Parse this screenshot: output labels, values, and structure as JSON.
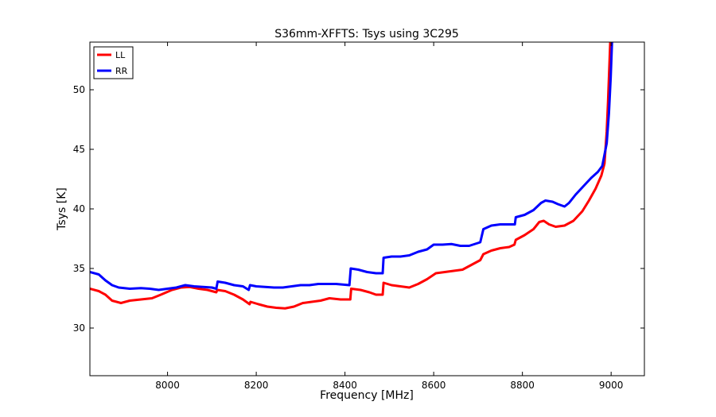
{
  "chart_data": {
    "type": "line",
    "title": "S36mm-XFFTS: Tsys using 3C295",
    "xlabel": "Frequency [MHz]",
    "ylabel": "Tsys [K]",
    "xlim": [
      7825,
      9075
    ],
    "ylim": [
      26,
      54
    ],
    "xticks": [
      8000,
      8200,
      8400,
      8600,
      8800,
      9000
    ],
    "yticks": [
      30,
      35,
      40,
      45,
      50
    ],
    "grid": false,
    "legend": {
      "placement": "top-left",
      "entries": [
        "LL",
        "RR"
      ]
    },
    "series": [
      {
        "name": "LL",
        "color": "#ff0000",
        "points": [
          [
            7825,
            33.3
          ],
          [
            7845,
            33.1
          ],
          [
            7860,
            32.8
          ],
          [
            7875,
            32.3
          ],
          [
            7895,
            32.1
          ],
          [
            7915,
            32.3
          ],
          [
            7940,
            32.4
          ],
          [
            7965,
            32.5
          ],
          [
            7985,
            32.8
          ],
          [
            8010,
            33.2
          ],
          [
            8030,
            33.4
          ],
          [
            8050,
            33.45
          ],
          [
            8070,
            33.3
          ],
          [
            8090,
            33.2
          ],
          [
            8110,
            33.0
          ],
          [
            8112,
            33.2
          ],
          [
            8130,
            33.1
          ],
          [
            8150,
            32.8
          ],
          [
            8170,
            32.4
          ],
          [
            8185,
            32.0
          ],
          [
            8187,
            32.2
          ],
          [
            8205,
            32.0
          ],
          [
            8225,
            31.8
          ],
          [
            8245,
            31.7
          ],
          [
            8265,
            31.65
          ],
          [
            8285,
            31.8
          ],
          [
            8305,
            32.1
          ],
          [
            8325,
            32.2
          ],
          [
            8345,
            32.3
          ],
          [
            8365,
            32.5
          ],
          [
            8390,
            32.4
          ],
          [
            8412,
            32.4
          ],
          [
            8414,
            33.3
          ],
          [
            8435,
            33.2
          ],
          [
            8455,
            33.0
          ],
          [
            8470,
            32.8
          ],
          [
            8485,
            32.8
          ],
          [
            8487,
            33.8
          ],
          [
            8505,
            33.6
          ],
          [
            8525,
            33.5
          ],
          [
            8545,
            33.4
          ],
          [
            8565,
            33.7
          ],
          [
            8585,
            34.1
          ],
          [
            8605,
            34.6
          ],
          [
            8625,
            34.7
          ],
          [
            8645,
            34.8
          ],
          [
            8665,
            34.9
          ],
          [
            8685,
            35.3
          ],
          [
            8705,
            35.7
          ],
          [
            8712,
            36.2
          ],
          [
            8730,
            36.5
          ],
          [
            8750,
            36.7
          ],
          [
            8770,
            36.8
          ],
          [
            8782,
            37.0
          ],
          [
            8785,
            37.4
          ],
          [
            8805,
            37.8
          ],
          [
            8825,
            38.3
          ],
          [
            8838,
            38.9
          ],
          [
            8848,
            39.0
          ],
          [
            8860,
            38.7
          ],
          [
            8875,
            38.5
          ],
          [
            8895,
            38.6
          ],
          [
            8915,
            39.0
          ],
          [
            8935,
            39.8
          ],
          [
            8950,
            40.7
          ],
          [
            8965,
            41.7
          ],
          [
            8978,
            42.8
          ],
          [
            8985,
            43.8
          ],
          [
            8990,
            46.5
          ],
          [
            8993,
            49.0
          ],
          [
            8996,
            52.0
          ],
          [
            8998,
            54.0
          ]
        ]
      },
      {
        "name": "RR",
        "color": "#0000ff",
        "points": [
          [
            7825,
            34.7
          ],
          [
            7845,
            34.5
          ],
          [
            7860,
            34.0
          ],
          [
            7875,
            33.6
          ],
          [
            7890,
            33.4
          ],
          [
            7915,
            33.3
          ],
          [
            7940,
            33.35
          ],
          [
            7960,
            33.3
          ],
          [
            7980,
            33.2
          ],
          [
            8000,
            33.3
          ],
          [
            8020,
            33.4
          ],
          [
            8040,
            33.6
          ],
          [
            8060,
            33.5
          ],
          [
            8080,
            33.45
          ],
          [
            8100,
            33.4
          ],
          [
            8110,
            33.3
          ],
          [
            8113,
            33.9
          ],
          [
            8130,
            33.8
          ],
          [
            8150,
            33.6
          ],
          [
            8170,
            33.5
          ],
          [
            8183,
            33.2
          ],
          [
            8186,
            33.6
          ],
          [
            8200,
            33.5
          ],
          [
            8220,
            33.45
          ],
          [
            8240,
            33.4
          ],
          [
            8260,
            33.4
          ],
          [
            8280,
            33.5
          ],
          [
            8300,
            33.6
          ],
          [
            8320,
            33.6
          ],
          [
            8340,
            33.7
          ],
          [
            8360,
            33.7
          ],
          [
            8380,
            33.7
          ],
          [
            8410,
            33.6
          ],
          [
            8413,
            35.0
          ],
          [
            8430,
            34.9
          ],
          [
            8450,
            34.7
          ],
          [
            8470,
            34.6
          ],
          [
            8485,
            34.6
          ],
          [
            8487,
            35.9
          ],
          [
            8505,
            36.0
          ],
          [
            8525,
            36.0
          ],
          [
            8545,
            36.1
          ],
          [
            8565,
            36.4
          ],
          [
            8585,
            36.6
          ],
          [
            8600,
            37.0
          ],
          [
            8620,
            37.0
          ],
          [
            8640,
            37.05
          ],
          [
            8660,
            36.9
          ],
          [
            8680,
            36.9
          ],
          [
            8705,
            37.2
          ],
          [
            8712,
            38.3
          ],
          [
            8730,
            38.6
          ],
          [
            8750,
            38.7
          ],
          [
            8770,
            38.7
          ],
          [
            8783,
            38.7
          ],
          [
            8785,
            39.3
          ],
          [
            8805,
            39.5
          ],
          [
            8825,
            39.9
          ],
          [
            8842,
            40.5
          ],
          [
            8852,
            40.7
          ],
          [
            8868,
            40.6
          ],
          [
            8880,
            40.4
          ],
          [
            8895,
            40.2
          ],
          [
            8905,
            40.5
          ],
          [
            8920,
            41.2
          ],
          [
            8940,
            42.0
          ],
          [
            8955,
            42.6
          ],
          [
            8970,
            43.1
          ],
          [
            8980,
            43.6
          ],
          [
            8990,
            45.5
          ],
          [
            8995,
            48.0
          ],
          [
            8999,
            51.0
          ],
          [
            9002,
            54.0
          ]
        ]
      }
    ]
  }
}
